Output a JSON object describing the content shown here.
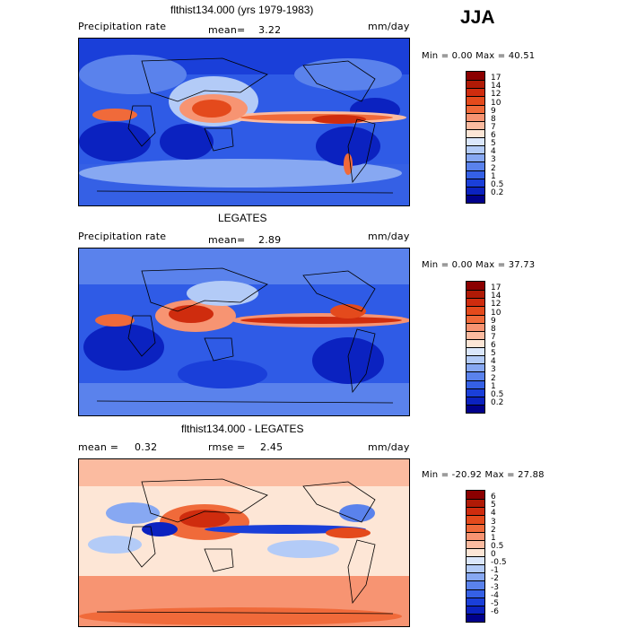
{
  "season": "JJA",
  "panels": [
    {
      "title": "flthist134.000 (yrs 1979-1983)",
      "left_label": "Precipitation rate",
      "mean_label": "mean=",
      "mean_value": "3.22",
      "units": "mm/day",
      "minmax": "Min =    0.00 Max =   40.51",
      "legend": [
        "17",
        "14",
        "12",
        "10",
        "9",
        "8",
        "7",
        "6",
        "5",
        "4",
        "3",
        "2",
        "1",
        "0.5",
        "0.2"
      ],
      "colors": [
        "#8b0000",
        "#b01a06",
        "#cf2c0e",
        "#e44a1c",
        "#f06a3a",
        "#f79472",
        "#fbbba0",
        "#fde6d6",
        "#dbe7fb",
        "#b3cbf7",
        "#87a8f2",
        "#5a82ec",
        "#3560e5",
        "#1a3fd9",
        "#0b22c0",
        "#00008b"
      ]
    },
    {
      "title": "LEGATES",
      "left_label": "Precipitation rate",
      "mean_label": "mean=",
      "mean_value": "2.89",
      "units": "mm/day",
      "minmax": "Min =    0.00 Max =   37.73",
      "legend": [
        "17",
        "14",
        "12",
        "10",
        "9",
        "8",
        "7",
        "6",
        "5",
        "4",
        "3",
        "2",
        "1",
        "0.5",
        "0.2"
      ],
      "colors": [
        "#8b0000",
        "#b01a06",
        "#cf2c0e",
        "#e44a1c",
        "#f06a3a",
        "#f79472",
        "#fbbba0",
        "#fde6d6",
        "#dbe7fb",
        "#b3cbf7",
        "#87a8f2",
        "#5a82ec",
        "#3560e5",
        "#1a3fd9",
        "#0b22c0",
        "#00008b"
      ]
    },
    {
      "title": "flthist134.000 - LEGATES",
      "left_label": "mean =",
      "mean_label": "",
      "left_value": "0.32",
      "rmse_label": "rmse =",
      "rmse_value": "2.45",
      "units": "mm/day",
      "minmax": "Min = -20.92 Max =   27.88",
      "legend": [
        "6",
        "5",
        "4",
        "3",
        "2",
        "1",
        "0.5",
        "0",
        "-0.5",
        "-1",
        "-2",
        "-3",
        "-4",
        "-5",
        "-6"
      ],
      "colors": [
        "#8b0000",
        "#b01a06",
        "#cf2c0e",
        "#e44a1c",
        "#f06a3a",
        "#f79472",
        "#fbbba0",
        "#fde6d6",
        "#dbe7fb",
        "#b3cbf7",
        "#87a8f2",
        "#5a82ec",
        "#3560e5",
        "#1a3fd9",
        "#0b22c0",
        "#00008b"
      ]
    }
  ]
}
